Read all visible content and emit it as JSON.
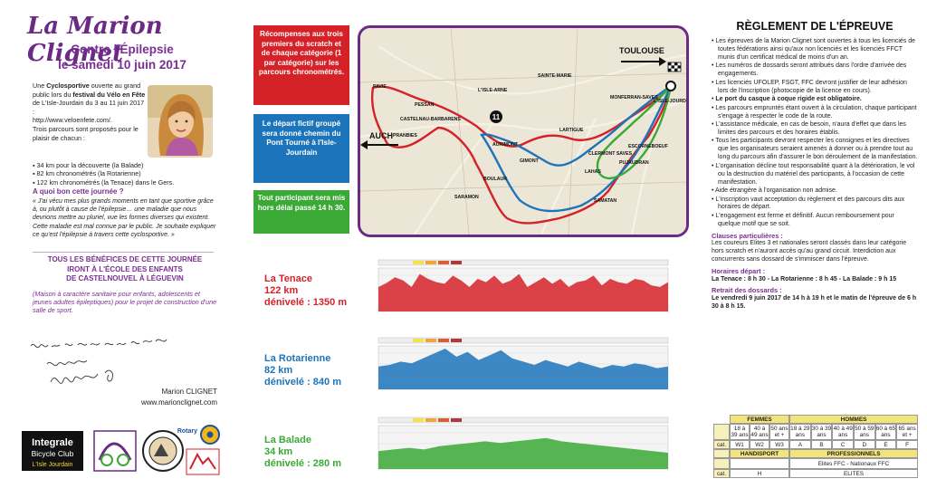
{
  "header": {
    "title": "La Marion Clignet",
    "subtitle_line1": "Contre l'Épilepsie",
    "subtitle_line2": "le samedi 10 juin 2017"
  },
  "intro": {
    "p1_a": "Une ",
    "p1_bold1": "Cyclosportive",
    "p1_b": " ouverte au grand public lors du ",
    "p1_bold2": "festival du Vélo en Fête",
    "p1_c": " de L'Isle-Jourdain du 3 au 11 juin 2017 :",
    "url": "http://www.veloenfete.com/.",
    "p2": "Trois parcours sont proposés pour le plaisir de chacun :",
    "items": [
      "34 km pour la découverte (la Balade)",
      "82 km chronométrés (la Rotarienne)",
      "122 km chronométrés (la Tenace) dans le Gers."
    ]
  },
  "question": {
    "title": "A quoi bon cette journée ?",
    "text": "« J'ai vécu mes plus grands moments en tant que sportive grâce à, ou plutôt à cause de l'épilepsie… une maladie que nous devrions mettre au pluriel, vue les formes diverses qui existent. Cette maladie est mal connue par le public. Je souhaite expliquer ce qu'est l'épilepsie à travers cette cyclosportive. »"
  },
  "benefits": {
    "line1": "TOUS LES BÉNÉFICES DE CETTE JOURNÉE",
    "line2": "IRONT À L'ÉCOLE DES ENFANTS",
    "line3": "DE CASTELNOUVEL À LÉGUEVIN",
    "assoc": "(Maison à caractère sanitaire pour enfants, adolescents et jeunes adultes épileptiques) pour le projet de construction d'une salle de sport."
  },
  "signature": {
    "name": "Marion CLIGNET",
    "site": "www.marionclignet.com"
  },
  "logos": {
    "integrale_line1": "Integrale",
    "integrale_line2": "Bicycle Club",
    "integrale_line3": "L'Isle Jourdain",
    "rotary": "Rotary"
  },
  "info_boxes": {
    "red": "Récompenses aux trois premiers du scratch et de chaque catégorie (1 par catégorie) sur les parcours chronométrés.",
    "blue": "Le départ fictif groupé sera donné chemin du Pont Tourné à l'Isle-Jourdain",
    "green": "Tout participant sera mis hors délai passé 14 h 30."
  },
  "map": {
    "toulouse": "TOULOUSE",
    "auch": "AUCH",
    "towns": [
      "PESSAN",
      "PAVIE",
      "CASTELNAU-BARBARENS",
      "PRANBIES",
      "AURIMONT",
      "SARAMON",
      "BOULAUR",
      "LARTIGUE",
      "SAMATAN",
      "LAHAS",
      "MONFERRAN-SAVES",
      "L'ISLE-JOURDAIN",
      "PUJAUDRAN",
      "ESCORNEBOEUF",
      "CLERMONT SAVES",
      "SAINTE-MARIE",
      "L'ISLE-ARNE",
      "GIMONT"
    ],
    "road_number": "11"
  },
  "courses": [
    {
      "name": "La Tenace",
      "distance": "122 km",
      "elevation": "dénivelé : 1350 m",
      "color": "#d52229"
    },
    {
      "name": "La Rotarienne",
      "distance": "82 km",
      "elevation": "dénivelé : 840 m",
      "color": "#1c74bb"
    },
    {
      "name": "La Balade",
      "distance": "34 km",
      "elevation": "dénivelé : 280 m",
      "color": "#3aa935"
    }
  ],
  "rules": {
    "title": "RÈGLEMENT DE L'ÉPREUVE",
    "items": [
      "Les épreuves de la Marion Clignet sont ouvertes à tous les licenciés de toutes fédérations ainsi qu'aux non licenciés et les licenciés FFCT munis d'un certificat médical de moins d'un an.",
      "Les numéros de dossards seront attribués dans l'ordre d'arrivée des engagements.",
      "Les licenciés UFOLEP, FSGT, FFC devront justifier de leur adhésion lors de l'inscription (photocopie de la licence en cours).",
      "Le port du casque à coque rigide est obligatoire.",
      "Les parcours empruntés étant ouvert à la circulation, chaque participant s'engage à respecter le code de la route.",
      "L'assistance médicale, en cas de besoin, n'aura d'effet que dans les limites des parcours et des horaires établis.",
      "Tous les participants devront respecter les consignes et les directives que les organisateurs seraient amenés à donner ou à prendre tout au long du parcours afin d'assurer le bon déroulement de la manifestation.",
      "L'organisation décline tout responsabilité quant à la détérioration, le vol ou la destruction du matériel des participants, à l'occasion de cette manifestation.",
      "Aide étrangère à l'organisation non admise.",
      "L'inscription vaut acceptation du règlement et des parcours dits aux horaires de départ.",
      "L'engagement est ferme et définitif. Aucun remboursement pour quelque motif que se soit."
    ],
    "clauses_title": "Clauses particulières :",
    "clauses_text": "Les coureurs Elites 3 et nationales seront classés dans leur catégorie hors scratch et n'auront accès qu'au grand circuit. Interdiction aux concurrents sans dossard de s'immiscer dans l'épreuve.",
    "horaires_title": "Horaires départ :",
    "horaires_text": "La Tenace : 8 h 30 - La Rotarienne : 8 h 45 - La Balade : 9 h 15",
    "dossards_title": "Retrait des dossards :",
    "dossards_text": "Le vendredi 9 juin 2017 de 14 h à 19 h et le matin de l'épreuve de 6 h 30 à 8 h 15."
  },
  "categories": {
    "femmes": "FEMMES",
    "hommes": "HOMMES",
    "ages_femmes": [
      "18 à 39 ans",
      "40 à 49 ans",
      "50 ans et +"
    ],
    "ages_hommes": [
      "18 à 29 ans",
      "30 à 39 ans",
      "40 à 49 ans",
      "50 à 59 ans",
      "60 à 65 ans",
      "65 ans et +"
    ],
    "cat_label": "cat.",
    "codes_femmes": [
      "W1",
      "W2",
      "W3"
    ],
    "codes_hommes": [
      "A",
      "B",
      "C",
      "D",
      "E",
      "F"
    ],
    "handisport": "HANDISPORT",
    "professionnels": "PROFESSIONNELS",
    "pro_desc": "Elites FFC - Nationaux FFC",
    "code_h": "H",
    "code_elites": "ELITES"
  }
}
